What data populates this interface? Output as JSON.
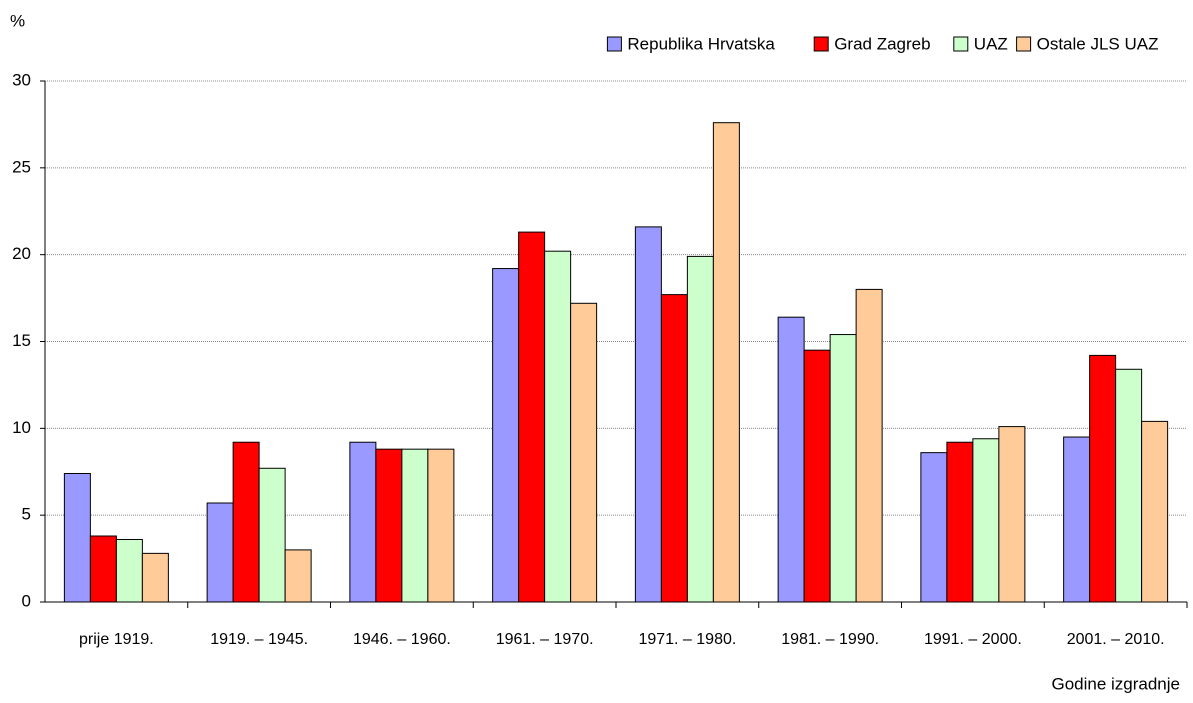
{
  "chart_data": {
    "type": "bar",
    "y_label": "%",
    "x_label": "Godine izgradnje",
    "categories": [
      "prije 1919.",
      "1919. – 1945.",
      "1946. – 1960.",
      "1961. – 1970.",
      "1971. – 1980.",
      "1981. – 1990.",
      "1991. – 2000.",
      "2001. – 2010."
    ],
    "series": [
      {
        "name": "Republika Hrvatska",
        "color": "#9999ff",
        "values": [
          7.4,
          5.7,
          9.2,
          19.2,
          21.6,
          16.4,
          8.6,
          9.5
        ]
      },
      {
        "name": "Grad Zagreb",
        "color": "#ff0000",
        "values": [
          3.8,
          9.2,
          8.8,
          21.3,
          17.7,
          14.5,
          9.2,
          14.2
        ]
      },
      {
        "name": "UAZ",
        "color": "#ccffcc",
        "values": [
          3.6,
          7.7,
          8.8,
          20.2,
          19.9,
          15.4,
          9.4,
          13.4
        ]
      },
      {
        "name": "Ostale JLS UAZ",
        "color": "#ffcc99",
        "values": [
          2.8,
          3.0,
          8.8,
          17.2,
          27.6,
          18.0,
          10.1,
          10.4
        ]
      }
    ],
    "ylim": [
      0,
      30
    ],
    "yticks": [
      0,
      5,
      10,
      15,
      20,
      25,
      30
    ],
    "grid": true,
    "legend": "top-right"
  }
}
